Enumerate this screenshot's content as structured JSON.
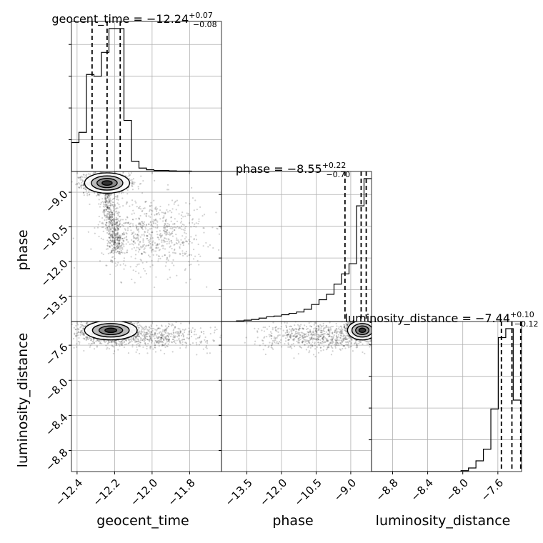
{
  "chart_data": {
    "type": "corner",
    "grid": true,
    "parameters": [
      "geocent_time",
      "phase",
      "luminosity_distance"
    ],
    "axis_labels": {
      "x": [
        "geocent_time",
        "phase",
        "luminosity_distance"
      ],
      "y": [
        "phase",
        "luminosity_distance"
      ]
    },
    "titles": [
      {
        "prefix": "geocent_time = ",
        "value": "−12.24",
        "plus": "+0.07",
        "minus": "−0.08"
      },
      {
        "prefix": "phase = ",
        "value": "−8.55",
        "plus": "+0.22",
        "minus": "−0.70"
      },
      {
        "prefix": "luminosity_distance = ",
        "value": "−7.44",
        "plus": "+0.10",
        "minus": "−0.12"
      }
    ],
    "ranges": {
      "geocent_time": [
        -12.43,
        -11.63
      ],
      "phase": [
        -14.6,
        -8.1
      ],
      "luminosity_distance": [
        -9.04,
        -7.33
      ]
    },
    "ticks": {
      "geocent_time": [
        -12.4,
        -12.2,
        -12.0,
        -11.8
      ],
      "phase": [
        -13.5,
        -12.0,
        -10.5,
        -9.0
      ],
      "luminosity_distance": [
        -8.8,
        -8.4,
        -8.0,
        -7.6
      ]
    },
    "tick_labels": {
      "geocent_time": [
        "−12.4",
        "−12.2",
        "−12.0",
        "−11.8"
      ],
      "phase": [
        "−13.5",
        "−12.0",
        "−10.5",
        "−9.0"
      ],
      "luminosity_distance": [
        "−8.8",
        "−8.4",
        "−8.0",
        "−7.6"
      ]
    },
    "quantiles": {
      "geocent_time": [
        -12.32,
        -12.24,
        -12.17
      ],
      "phase": [
        -9.25,
        -8.55,
        -8.33
      ],
      "luminosity_distance": [
        -7.56,
        -7.44,
        -7.34
      ]
    },
    "histograms": {
      "geocent_time": {
        "bin_start": -12.43,
        "bin_width": 0.04,
        "counts": [
          0.085,
          0.115,
          0.285,
          0.28,
          0.35,
          0.42,
          0.42,
          0.15,
          0.03,
          0.01,
          0.005,
          0.003,
          0.003,
          0.002,
          0.001,
          0.001,
          0,
          0,
          0,
          0
        ]
      },
      "phase": {
        "bin_start": -14.6,
        "bin_width": 0.325,
        "counts": [
          0,
          0,
          0.001,
          0.002,
          0.003,
          0.005,
          0.007,
          0.008,
          0.01,
          0.012,
          0.014,
          0.018,
          0.025,
          0.032,
          0.04,
          0.055,
          0.07,
          0.085,
          0.17,
          0.21
        ]
      },
      "luminosity_distance": {
        "bin_start": -9.04,
        "bin_width": 0.085,
        "counts": [
          0,
          0,
          0,
          0,
          0,
          0,
          0,
          0,
          0,
          0,
          0,
          0,
          0.001,
          0.004,
          0.012,
          0.025,
          0.07,
          0.15,
          0.16,
          0.08
        ]
      }
    },
    "samples_2d": {
      "phase_vs_geocent_time": {
        "core_mean": [
          -12.24,
          -8.6
        ],
        "core_sd": [
          0.06,
          0.22
        ],
        "ridge_from": [
          -12.25,
          -8.9
        ],
        "ridge_to": [
          -12.18,
          -11.6
        ],
        "tail_mean": [
          -12.0,
          -10.8
        ],
        "tail_sd": [
          0.14,
          0.8
        ]
      },
      "luminosity_distance_vs_geocent_time": {
        "core_mean": [
          -12.22,
          -7.43
        ],
        "core_sd": [
          0.07,
          0.055
        ],
        "tail_mean": [
          -12.05,
          -7.5
        ],
        "tail_sd": [
          0.18,
          0.07
        ]
      },
      "luminosity_distance_vs_phase": {
        "core_mean": [
          -8.5,
          -7.43
        ],
        "core_sd": [
          0.32,
          0.055
        ],
        "tail_mean": [
          -10.4,
          -7.5
        ],
        "tail_sd": [
          1.2,
          0.08
        ]
      }
    }
  }
}
